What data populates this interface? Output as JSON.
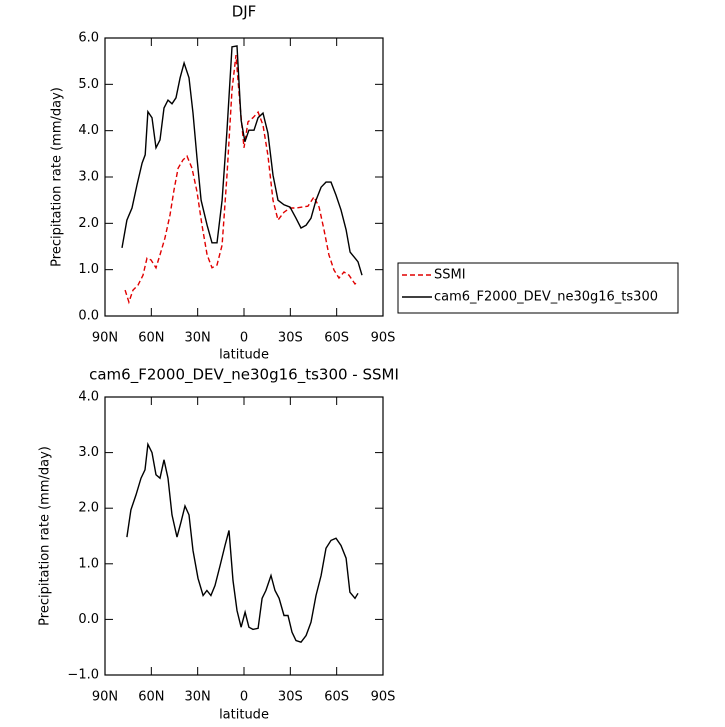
{
  "chart_data": [
    {
      "type": "line",
      "title": "DJF",
      "xlabel": "latitude",
      "ylabel": "Precipitation rate (mm/day)",
      "xlim": [
        90,
        -90
      ],
      "xticks": [
        {
          "value": 90,
          "label": "90N"
        },
        {
          "value": 60,
          "label": "60N"
        },
        {
          "value": 30,
          "label": "30N"
        },
        0,
        {
          "value": -30,
          "label": "30S"
        },
        {
          "value": -60,
          "label": "60S"
        },
        {
          "value": -90,
          "label": "90S"
        }
      ],
      "ylim": [
        0,
        6
      ],
      "yticks": [
        {
          "value": 0,
          "label": "0.0"
        },
        {
          "value": 1,
          "label": "1.0"
        },
        {
          "value": 2,
          "label": "2.0"
        },
        {
          "value": 3,
          "label": "3.0"
        },
        {
          "value": 4,
          "label": "4.0"
        },
        {
          "value": 5,
          "label": "5.0"
        },
        {
          "value": 6,
          "label": "6.0"
        }
      ],
      "legend": "right",
      "series": [
        {
          "name": "SSMI",
          "color": "#e00000",
          "linestyle": "dashed",
          "x": [
            77,
            74.5,
            71.9,
            68.6,
            65.4,
            62.8,
            60.2,
            57,
            54.4,
            51.2,
            47.9,
            45.3,
            42.7,
            39.5,
            36.9,
            33.7,
            30.4,
            27.2,
            23.9,
            20.7,
            17.5,
            14.2,
            11,
            7.8,
            5.2,
            2.6,
            0,
            -2.6,
            -5.8,
            -9.1,
            -12.3,
            -15.5,
            -18.8,
            -22,
            -25.9,
            -29.8,
            -33.7,
            -37.6,
            -41.4,
            -45.3,
            -48.6,
            -51.8,
            -55,
            -58.3,
            -61.5,
            -64.7,
            -68,
            -71.9,
            -73.8
          ],
          "values": [
            0.56,
            0.3,
            0.56,
            0.67,
            0.88,
            1.25,
            1.21,
            1.04,
            1.32,
            1.68,
            2.18,
            2.72,
            3.19,
            3.37,
            3.45,
            3.19,
            2.68,
            1.96,
            1.32,
            1.04,
            1.1,
            1.53,
            3.04,
            4.88,
            5.63,
            4.55,
            3.63,
            4.19,
            4.28,
            4.4,
            4.12,
            3.47,
            2.5,
            2.07,
            2.24,
            2.33,
            2.33,
            2.35,
            2.37,
            2.57,
            2.35,
            1.86,
            1.32,
            0.99,
            0.82,
            0.95,
            0.88,
            0.69,
            0.75
          ]
        },
        {
          "name": "cam6_F2000_DEV_ne30g16_ts300",
          "color": "#000000",
          "linestyle": "solid",
          "x": [
            79,
            75.8,
            72.5,
            69.3,
            66,
            64,
            62.2,
            59.6,
            57,
            54.4,
            51.8,
            49.2,
            46.6,
            44,
            41.4,
            38.8,
            35.6,
            33,
            30.4,
            27.8,
            23.9,
            20.7,
            17.5,
            14.2,
            11,
            7.8,
            4.5,
            1.9,
            -0.6,
            -3.2,
            -6.5,
            -9.1,
            -12.3,
            -15.5,
            -18.8,
            -22,
            -25.9,
            -29.8,
            -33.7,
            -36.9,
            -40.2,
            -43.4,
            -46.6,
            -49.9,
            -53.1,
            -56.3,
            -59.6,
            -62.8,
            -66.1,
            -68.7,
            -71.9,
            -73.8,
            -76.4
          ],
          "values": [
            1.47,
            2.07,
            2.33,
            2.83,
            3.3,
            3.48,
            4.41,
            4.28,
            3.63,
            3.8,
            4.49,
            4.66,
            4.58,
            4.71,
            5.14,
            5.46,
            5.14,
            4.38,
            3.41,
            2.5,
            1.96,
            1.58,
            1.58,
            2.5,
            4.01,
            5.81,
            5.83,
            4.23,
            3.76,
            4.01,
            4.01,
            4.28,
            4.38,
            3.95,
            3.04,
            2.5,
            2.4,
            2.35,
            2.11,
            1.9,
            1.96,
            2.11,
            2.5,
            2.78,
            2.89,
            2.89,
            2.61,
            2.29,
            1.86,
            1.38,
            1.25,
            1.17,
            0.88
          ]
        }
      ]
    },
    {
      "type": "line",
      "title": "cam6_F2000_DEV_ne30g16_ts300 - SSMI",
      "xlabel": "latitude",
      "ylabel": "Precipitation rate (mm/day)",
      "xlim": [
        90,
        -90
      ],
      "xticks": [
        {
          "value": 90,
          "label": "90N"
        },
        {
          "value": 60,
          "label": "60N"
        },
        {
          "value": 30,
          "label": "30N"
        },
        0,
        {
          "value": -30,
          "label": "30S"
        },
        {
          "value": -60,
          "label": "60S"
        },
        {
          "value": -90,
          "label": "90S"
        }
      ],
      "ylim": [
        -1,
        4
      ],
      "yticks": [
        {
          "value": -1,
          "label": "−1.0"
        },
        {
          "value": 0,
          "label": "0.0"
        },
        {
          "value": 1,
          "label": "1.0"
        },
        {
          "value": 2,
          "label": "2.0"
        },
        {
          "value": 3,
          "label": "3.0"
        },
        {
          "value": 4,
          "label": "4.0"
        }
      ],
      "color": "#000000",
      "x": [
        75.8,
        73.2,
        69.9,
        66.7,
        64.1,
        62.2,
        59.6,
        57,
        54.4,
        51.8,
        49.2,
        46.6,
        43.4,
        40.8,
        38.2,
        35.6,
        33,
        29.8,
        26.5,
        24,
        21.4,
        18.8,
        15.5,
        12.3,
        9.7,
        7.1,
        4.5,
        1.9,
        -0.7,
        -3.2,
        -5.8,
        -9.1,
        -11.7,
        -14.2,
        -17.5,
        -20.1,
        -22.7,
        -25.9,
        -28.5,
        -31.1,
        -33.7,
        -36.9,
        -40.2,
        -43.4,
        -46.6,
        -49.9,
        -53.1,
        -56.3,
        -59.6,
        -62.8,
        -66.1,
        -68.6,
        -71.9,
        -73.8
      ],
      "values": [
        1.48,
        1.97,
        2.24,
        2.54,
        2.69,
        3.15,
        3.0,
        2.6,
        2.54,
        2.87,
        2.54,
        1.88,
        1.48,
        1.75,
        2.04,
        1.88,
        1.24,
        0.74,
        0.43,
        0.52,
        0.43,
        0.61,
        0.97,
        1.33,
        1.6,
        0.7,
        0.16,
        -0.14,
        0.13,
        -0.14,
        -0.18,
        -0.16,
        0.38,
        0.52,
        0.79,
        0.52,
        0.38,
        0.07,
        0.07,
        -0.23,
        -0.38,
        -0.41,
        -0.29,
        -0.05,
        0.43,
        0.79,
        1.28,
        1.42,
        1.46,
        1.33,
        1.1,
        0.49,
        0.38,
        0.47
      ]
    }
  ]
}
